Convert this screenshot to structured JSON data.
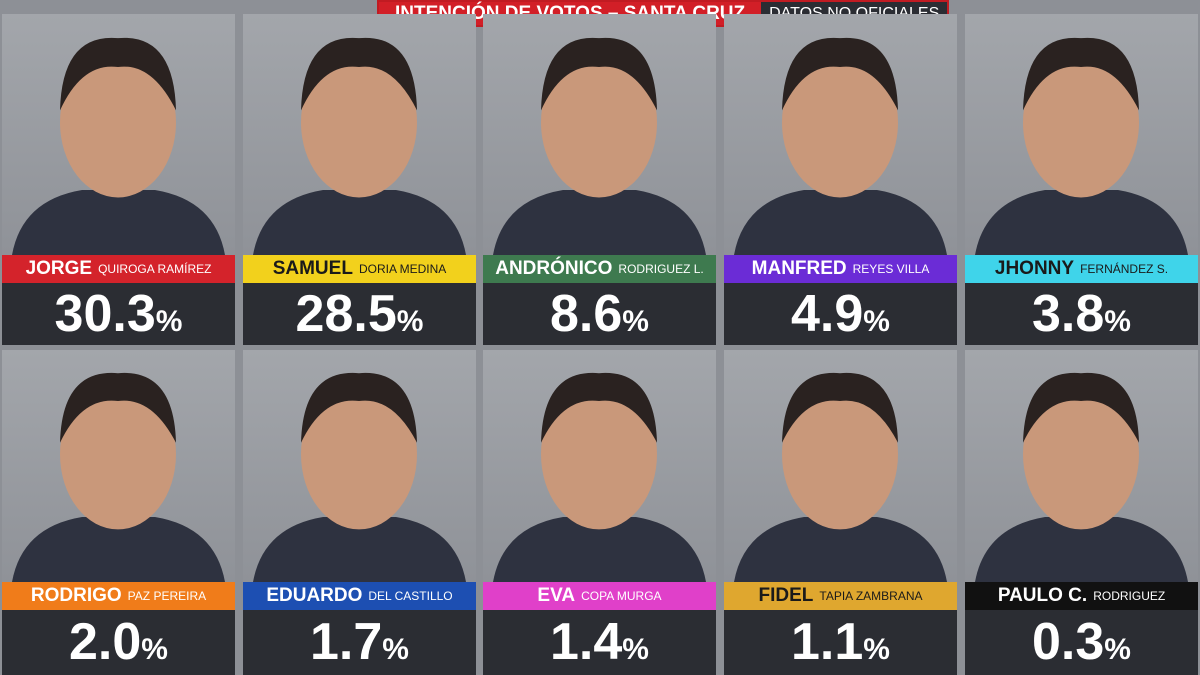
{
  "header": {
    "title": "INTENCIÓN DE VOTOS – SANTA CRUZ",
    "tag": "DATOS NO OFICIALES",
    "unit": "%"
  },
  "candidates": [
    {
      "first": "JORGE",
      "rest": "QUIROGA RAMÍREZ",
      "percent": "30.3",
      "color": "#d4232b"
    },
    {
      "first": "SAMUEL",
      "rest": "DORIA MEDINA",
      "percent": "28.5",
      "color": "#f2d11c"
    },
    {
      "first": "ANDRÓNICO",
      "rest": "RODRIGUEZ L.",
      "percent": "8.6",
      "color": "#3e7a4f"
    },
    {
      "first": "MANFRED",
      "rest": "REYES VILLA",
      "percent": "4.9",
      "color": "#6b2cd6"
    },
    {
      "first": "JHONNY",
      "rest": "FERNÁNDEZ S.",
      "percent": "3.8",
      "color": "#3fd4ea"
    },
    {
      "first": "RODRIGO",
      "rest": "PAZ PEREIRA",
      "percent": "2.0",
      "color": "#f07c1a"
    },
    {
      "first": "EDUARDO",
      "rest": "DEL CASTILLO",
      "percent": "1.7",
      "color": "#1d4fb2"
    },
    {
      "first": "EVA",
      "rest": "COPA MURGA",
      "percent": "1.4",
      "color": "#e040c9"
    },
    {
      "first": "FIDEL",
      "rest": "TAPIA ZAMBRANA",
      "percent": "1.1",
      "color": "#dfa72f"
    },
    {
      "first": "PAULO C.",
      "rest": "RODRIGUEZ",
      "percent": "0.3",
      "color": "#111111"
    }
  ]
}
